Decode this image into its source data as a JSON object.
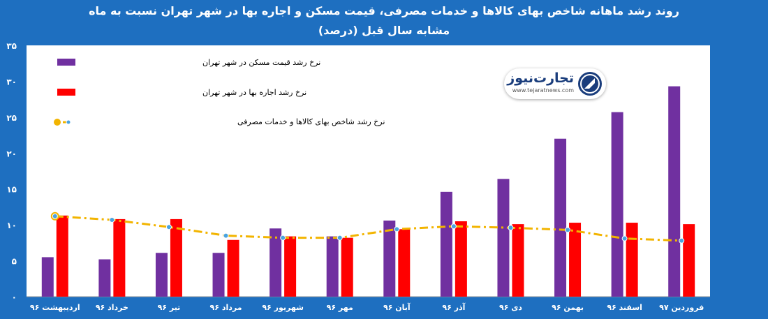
{
  "title": {
    "line1": "روند رشد ماهانه شاخص بهای کالاها و خدمات مصرفی، قیمت مسکن و اجاره بها در شهر تهران نسبت به ماه",
    "line2": "مشابه سال قبل (درصد)"
  },
  "logo": {
    "name": "تجارت‌نیوز",
    "url": "www.tejaratnews.com"
  },
  "chart_data": {
    "type": "bar",
    "categories": [
      "اردیبهشت ۹۶",
      "خرداد ۹۶",
      "تیر ۹۶",
      "مرداد ۹۶",
      "شهریور ۹۶",
      "مهر ۹۶",
      "آبان ۹۶",
      "آذر ۹۶",
      "دی ۹۶",
      "بهمن ۹۶",
      "اسفند ۹۶",
      "فروردین ۹۷"
    ],
    "series": [
      {
        "name": "نرخ رشد قیمت مسکن در شهر تهران",
        "kind": "bar",
        "color": "#7030a0",
        "values": [
          5.5,
          5.2,
          6.1,
          6.1,
          9.5,
          8.4,
          10.6,
          14.6,
          16.4,
          22.0,
          25.7,
          29.3
        ]
      },
      {
        "name": "نرخ رشد اجاره بها در شهر تهران",
        "kind": "bar",
        "color": "#ff0000",
        "values": [
          11.3,
          10.8,
          10.8,
          7.9,
          8.4,
          8.2,
          9.4,
          10.5,
          10.1,
          10.3,
          10.3,
          10.1
        ]
      },
      {
        "name": "نرخ رشد شاخص بهای کالاها و خدمات مصرفی",
        "kind": "line",
        "color": "#f2b400",
        "marker_color": "#4aa3df",
        "values": [
          11.2,
          10.7,
          9.7,
          8.5,
          8.2,
          8.2,
          9.4,
          9.8,
          9.6,
          9.3,
          8.1,
          7.8
        ]
      }
    ],
    "ylim": [
      0,
      35
    ],
    "yticks": [
      0,
      5,
      10,
      15,
      20,
      25,
      30,
      35
    ],
    "ytick_labels": [
      "۰",
      "۵",
      "۱۰",
      "۱۵",
      "۲۰",
      "۲۵",
      "۳۰",
      "۳۵"
    ],
    "legend_position": "top-left",
    "grid": false
  }
}
